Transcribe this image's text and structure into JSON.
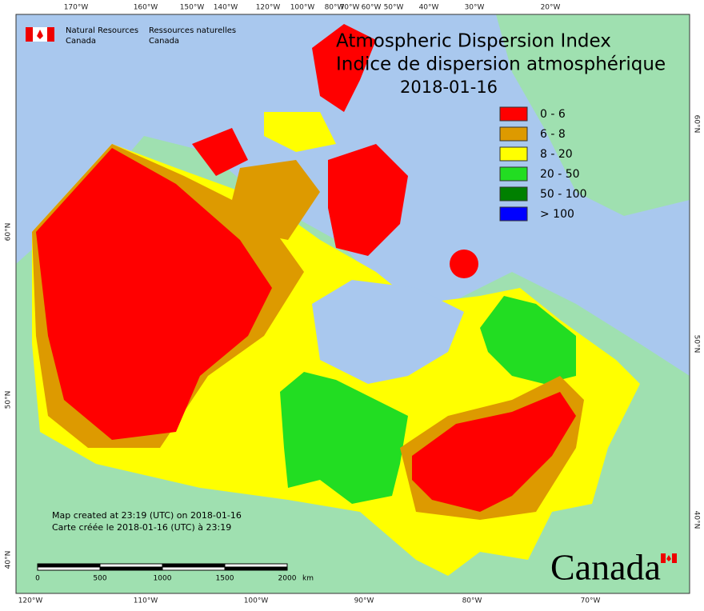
{
  "header": {
    "agency_en": [
      "Natural Resources",
      "Canada"
    ],
    "agency_fr": [
      "Ressources naturelles",
      "Canada"
    ]
  },
  "title": {
    "en": "Atmospheric Dispersion Index",
    "fr": "Indice de dispersion atmosphérique",
    "date": "2018-01-16"
  },
  "legend": [
    {
      "label": "0 - 6",
      "color": "#ff0000"
    },
    {
      "label": "6 - 8",
      "color": "#dd9a00"
    },
    {
      "label": "8 - 20",
      "color": "#ffff00"
    },
    {
      "label": "20 - 50",
      "color": "#22dd22"
    },
    {
      "label": "50 - 100",
      "color": "#008000"
    },
    {
      "label": "> 100",
      "color": "#0000ff"
    }
  ],
  "graticule": {
    "top": [
      "170°W",
      "160°W",
      "150°W",
      "140°W",
      "120°W",
      "100°W",
      "80°W",
      "70°W",
      "60°W",
      "50°W",
      "40°W",
      "30°W",
      "20°W"
    ],
    "bottom": [
      "120°W",
      "110°W",
      "100°W",
      "90°W",
      "80°W",
      "70°W"
    ],
    "left": [
      "60°N",
      "50°N",
      "40°N"
    ],
    "right": [
      "60°N",
      "50°N",
      "40°N"
    ]
  },
  "credits": [
    "Map created at 23:19 (UTC) on 2018-01-16",
    "Carte créée le 2018-01-16 (UTC) à 23:19"
  ],
  "scale": {
    "ticks": [
      "0",
      "500",
      "1000",
      "1500",
      "2000"
    ],
    "unit": "km"
  },
  "wordmark": "Canada"
}
